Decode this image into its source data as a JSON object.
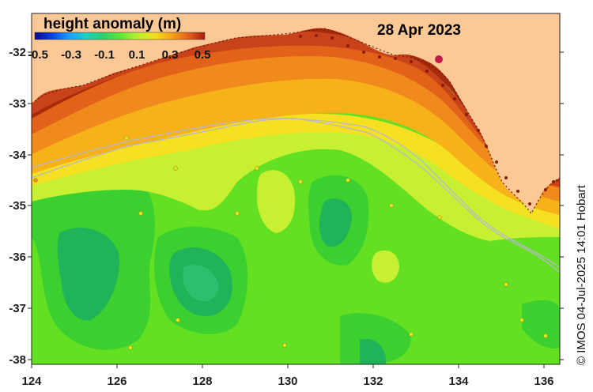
{
  "legend": {
    "title": "height anomaly (m)",
    "tick_labels": [
      "-0.5",
      "-0.3",
      "-0.1",
      "0.1",
      "0.3",
      "0.5"
    ],
    "range": [
      -0.5,
      0.5
    ],
    "colors": [
      "#08088a",
      "#0a3fe0",
      "#1a9cff",
      "#1fd0c0",
      "#2ccf6a",
      "#5ee53a",
      "#b7f030",
      "#f2e21a",
      "#f5a617",
      "#e8621a",
      "#a51d0c"
    ]
  },
  "date": "28 Apr 2023",
  "credit": "© IMOS 04-Jul-2025 14:01 Hobart",
  "axes": {
    "x_ticks": [
      "124",
      "126",
      "128",
      "130",
      "132",
      "134",
      "136"
    ],
    "y_ticks": [
      "-32",
      "-33",
      "-34",
      "-35",
      "-36",
      "-37",
      "-38"
    ],
    "lon_range": [
      124,
      136.5
    ],
    "lat_range": [
      -38.1,
      -31.3
    ]
  },
  "colors": {
    "land": "#fcc895",
    "dark_brown": "#a82a0c",
    "orange": "#f08a1c",
    "yellow": "#f5e021",
    "lime": "#c8f032",
    "green": "#63e021",
    "mid_green": "#3ccf30",
    "teal_green": "#1fb35a",
    "contour": "#b8b8c8"
  }
}
